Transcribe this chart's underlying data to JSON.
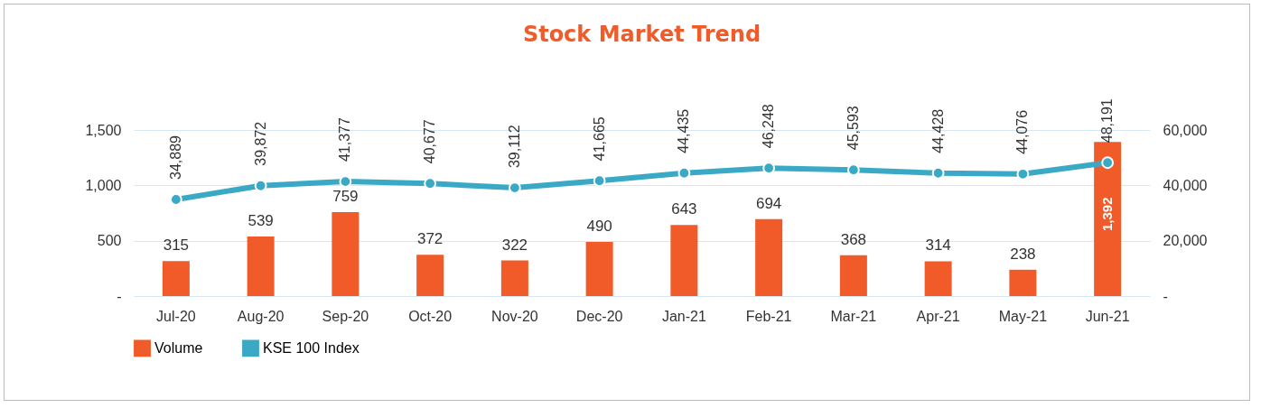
{
  "chart_data": {
    "type": "bar",
    "title": "Stock Market Trend",
    "categories": [
      "Jul-20",
      "Aug-20",
      "Sep-20",
      "Oct-20",
      "Nov-20",
      "Dec-20",
      "Jan-21",
      "Feb-21",
      "Mar-21",
      "Apr-21",
      "May-21",
      "Jun-21"
    ],
    "series": [
      {
        "name": "Volume",
        "color": "#f15a29",
        "values": [
          315,
          539,
          759,
          372,
          322,
          490,
          643,
          694,
          368,
          314,
          238,
          1392
        ],
        "value_labels": [
          "315",
          "539",
          "759",
          "372",
          "322",
          "490",
          "643",
          "694",
          "368",
          "314",
          "238",
          "1,392"
        ]
      },
      {
        "name": "KSE 100 Index",
        "type": "line",
        "axis": "y2",
        "color": "#3aa9c6",
        "values": [
          34889,
          39872,
          41377,
          40677,
          39112,
          41665,
          44435,
          46248,
          45593,
          44428,
          44076,
          48191
        ],
        "value_labels": [
          "34,889",
          "39,872",
          "41,377",
          "40,677",
          "39,112",
          "41,665",
          "44,435",
          "46,248",
          "45,593",
          "44,428",
          "44,076",
          "48,191"
        ]
      }
    ],
    "ylim": [
      0,
      1500
    ],
    "yticks": [
      {
        "value": 0,
        "label": "-"
      },
      500,
      {
        "value": 1000,
        "label": "1,000"
      },
      {
        "value": 1500,
        "label": "1,500"
      }
    ],
    "y2lim": [
      0,
      60000
    ],
    "y2ticks": [
      {
        "value": 0,
        "label": "-"
      },
      {
        "value": 20000,
        "label": "20,000"
      },
      {
        "value": 40000,
        "label": "40,000"
      },
      {
        "value": 60000,
        "label": "60,000"
      }
    ],
    "grid": "y",
    "legend": "bottom",
    "marker": "circle"
  }
}
